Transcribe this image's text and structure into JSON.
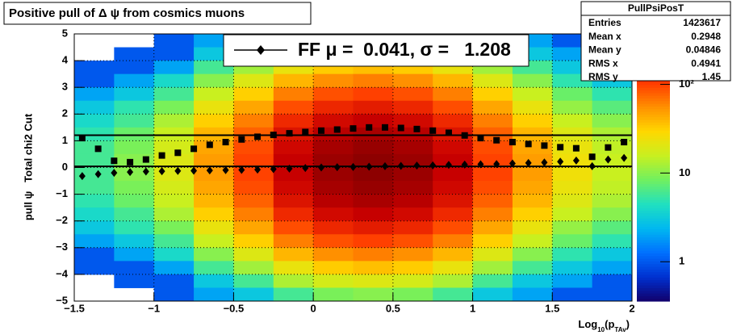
{
  "chart_data": {
    "type": "heatmap",
    "title": "Positive pull of Δ ψ from cosmics muons",
    "y_label": "pull ψ   Total chi2 Cut",
    "x_label": [
      "Log",
      "10",
      "(p",
      "TAv",
      ")"
    ],
    "xlim": [
      -1.5,
      2
    ],
    "ylim": [
      -5,
      5
    ],
    "xticks": [
      {
        "value": -1.5,
        "label": "−1.5"
      },
      {
        "value": -1,
        "label": "−1"
      },
      {
        "value": -0.5,
        "label": "−0.5"
      },
      0,
      0.5,
      1,
      1.5,
      2
    ],
    "yticks": [
      {
        "value": -5,
        "label": "−5"
      },
      {
        "value": -4,
        "label": "−4"
      },
      {
        "value": -3,
        "label": "−3"
      },
      {
        "value": -2,
        "label": "−2"
      },
      {
        "value": -1,
        "label": "−1"
      },
      0,
      1,
      2,
      3,
      4,
      5
    ],
    "grid": true,
    "x_bins": [
      -1.5,
      -1.25,
      -1,
      -0.75,
      -0.5,
      -0.25,
      0,
      0.25,
      0.5,
      0.75,
      1,
      1.25,
      1.5,
      1.75,
      2
    ],
    "y_bins": [
      5,
      4.5,
      4,
      3.5,
      3,
      2.5,
      2,
      1.5,
      1,
      0.5,
      0,
      -0.5,
      -1,
      -1.5,
      -2,
      -2.5,
      -3,
      -3.5,
      -4,
      -4.5,
      -5
    ],
    "z": [
      [
        0,
        0,
        1,
        2,
        3,
        6,
        9,
        10,
        9,
        6,
        3,
        2,
        1,
        1
      ],
      [
        0,
        1,
        1,
        3,
        6,
        13,
        18,
        20,
        18,
        13,
        6,
        3,
        2,
        1
      ],
      [
        1,
        1,
        2,
        6,
        12,
        23,
        33,
        37,
        33,
        23,
        12,
        6,
        3,
        2
      ],
      [
        1,
        2,
        4,
        10,
        20,
        40,
        56,
        63,
        56,
        40,
        20,
        10,
        5,
        3
      ],
      [
        2,
        3,
        6,
        16,
        32,
        63,
        89,
        100,
        89,
        63,
        32,
        16,
        8,
        5
      ],
      [
        3,
        5,
        9,
        23,
        46,
        91,
        129,
        145,
        129,
        91,
        46,
        23,
        11,
        7
      ],
      [
        4,
        6,
        13,
        32,
        63,
        126,
        178,
        200,
        178,
        126,
        63,
        32,
        16,
        10
      ],
      [
        5,
        8,
        16,
        40,
        79,
        158,
        224,
        251,
        224,
        158,
        79,
        40,
        20,
        13
      ],
      [
        6,
        9,
        18,
        46,
        92,
        182,
        257,
        289,
        257,
        182,
        92,
        46,
        23,
        15
      ],
      [
        6,
        10,
        20,
        50,
        99,
        198,
        280,
        314,
        280,
        198,
        99,
        50,
        25,
        16
      ],
      [
        6,
        10,
        20,
        50,
        99,
        198,
        280,
        314,
        280,
        198,
        99,
        50,
        25,
        16
      ],
      [
        6,
        9,
        18,
        46,
        92,
        182,
        257,
        289,
        257,
        182,
        92,
        46,
        23,
        15
      ],
      [
        5,
        8,
        16,
        40,
        79,
        158,
        224,
        251,
        224,
        158,
        79,
        40,
        20,
        13
      ],
      [
        4,
        6,
        13,
        32,
        63,
        126,
        178,
        200,
        178,
        126,
        63,
        32,
        16,
        10
      ],
      [
        3,
        5,
        9,
        23,
        46,
        91,
        129,
        145,
        129,
        91,
        46,
        23,
        11,
        7
      ],
      [
        2,
        3,
        6,
        16,
        32,
        63,
        89,
        100,
        89,
        63,
        32,
        16,
        8,
        5
      ],
      [
        1,
        2,
        4,
        10,
        20,
        40,
        56,
        63,
        56,
        40,
        20,
        10,
        5,
        3
      ],
      [
        1,
        1,
        2,
        6,
        12,
        23,
        33,
        37,
        33,
        23,
        12,
        6,
        3,
        2
      ],
      [
        0,
        1,
        1,
        3,
        6,
        13,
        18,
        20,
        18,
        13,
        6,
        3,
        2,
        1
      ],
      [
        0,
        0,
        1,
        2,
        3,
        6,
        9,
        10,
        9,
        6,
        3,
        2,
        1,
        1
      ]
    ],
    "zlim": [
      0.36,
      370
    ],
    "zlog": true,
    "zticks": [
      1,
      10,
      {
        "value": 100,
        "label": "10²"
      }
    ],
    "palette": [
      "#12006a",
      "#0030d0",
      "#0070ff",
      "#00b8f0",
      "#20e0c0",
      "#70f060",
      "#c8f020",
      "#ffd800",
      "#ff9000",
      "#ff3a00",
      "#c80000",
      "#780000"
    ],
    "x": [
      -1.45,
      -1.35,
      -1.25,
      -1.15,
      -1.05,
      -0.95,
      -0.85,
      -0.75,
      -0.65,
      -0.55,
      -0.45,
      -0.35,
      -0.25,
      -0.15,
      -0.05,
      0.05,
      0.15,
      0.25,
      0.35,
      0.45,
      0.55,
      0.65,
      0.75,
      0.85,
      0.95,
      1.05,
      1.15,
      1.25,
      1.35,
      1.45,
      1.55,
      1.65,
      1.75,
      1.85,
      1.95
    ],
    "series": [
      {
        "marker": "diamond",
        "color": "#000000",
        "values": [
          -0.32,
          -0.25,
          -0.2,
          -0.17,
          -0.15,
          -0.14,
          -0.13,
          -0.12,
          -0.11,
          -0.1,
          -0.09,
          -0.08,
          -0.06,
          -0.04,
          -0.02,
          0,
          0.01,
          0.02,
          0.03,
          0.05,
          0.06,
          0.07,
          0.08,
          0.1,
          0.11,
          0.12,
          0.13,
          0.15,
          0.17,
          0.19,
          0.22,
          0.26,
          0.05,
          0.3,
          0.36
        ]
      },
      {
        "marker": "square",
        "color": "#000000",
        "values": [
          1.1,
          0.7,
          0.25,
          0.2,
          0.3,
          0.45,
          0.55,
          0.7,
          0.85,
          0.95,
          1.05,
          1.15,
          1.22,
          1.28,
          1.33,
          1.38,
          1.42,
          1.46,
          1.5,
          1.5,
          1.48,
          1.44,
          1.38,
          1.3,
          1.2,
          1.1,
          1.02,
          0.95,
          0.88,
          0.82,
          0.76,
          0.72,
          0.4,
          0.75,
          0.95
        ]
      }
    ],
    "fit_lines": [
      0.041,
      1.208
    ],
    "legend": "FF μ =  0.041, σ =   1.208",
    "stats": {
      "title": "PullPsiPosT",
      "rows": [
        [
          "Entries",
          1423617
        ],
        [
          "Mean x",
          0.2948
        ],
        [
          "Mean y",
          0.04846
        ],
        [
          "RMS x",
          0.4941
        ],
        [
          "RMS y",
          1.45
        ]
      ]
    }
  }
}
